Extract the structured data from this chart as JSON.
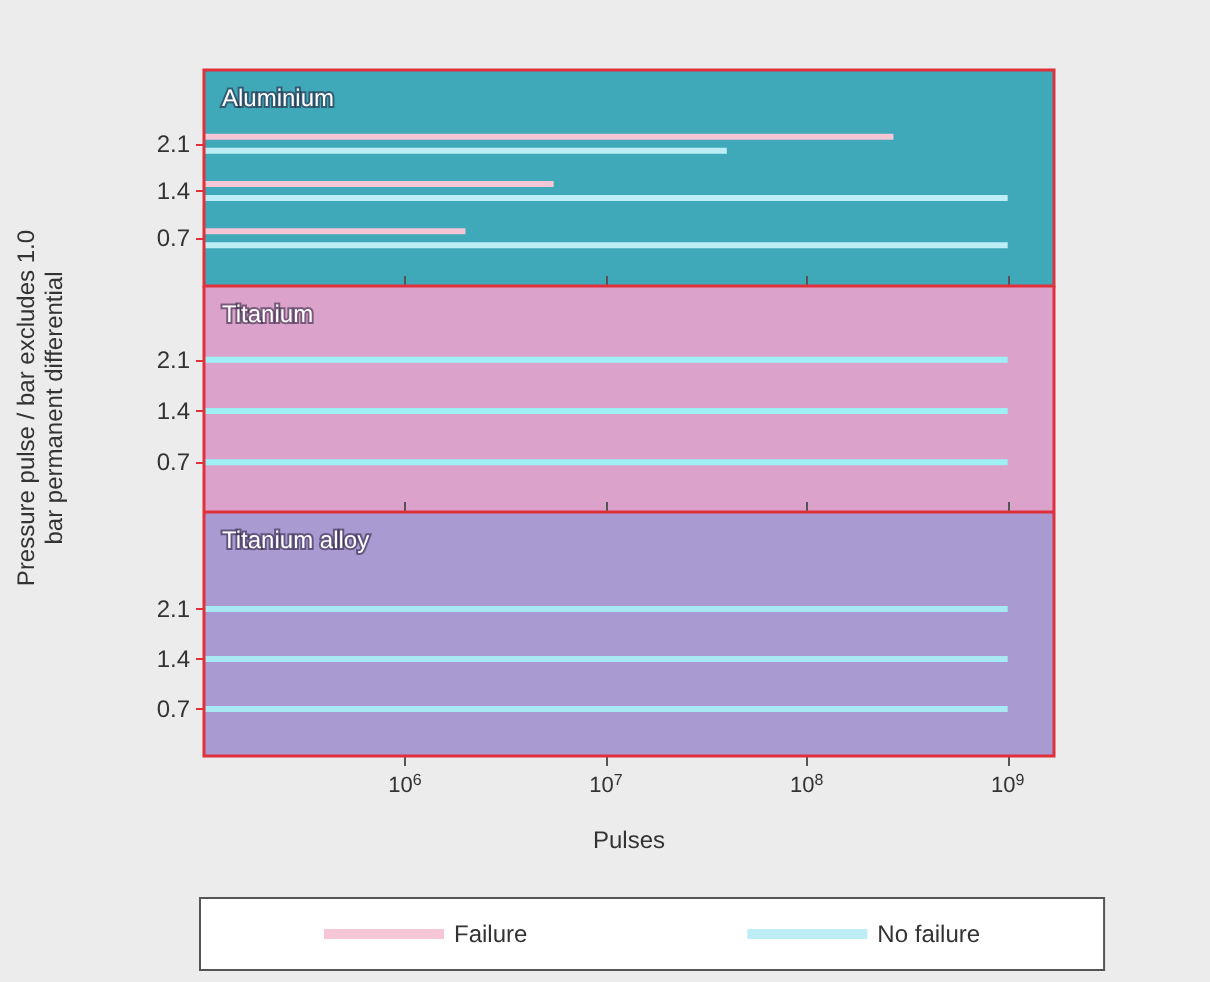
{
  "chart_data": [
    {
      "type": "bar",
      "orientation": "horizontal",
      "title": "Aluminium",
      "categories": [
        "2.1",
        "1.4",
        "0.7"
      ],
      "series": [
        {
          "name": "Failure",
          "color": "#f4c6d6",
          "values": [
            270000000,
            5500000,
            2000000
          ]
        },
        {
          "name": "No failure",
          "color": "#bdeef6",
          "values": [
            40000000,
            1000000000,
            1000000000
          ]
        }
      ],
      "log": "x",
      "xlim": [
        100000,
        1700000000
      ],
      "xticks": [
        {
          "value": 1000000,
          "label": null
        },
        {
          "value": 10000000,
          "label": null
        },
        {
          "value": 100000000,
          "label": null
        },
        {
          "value": 1000000000,
          "label": null
        }
      ],
      "tick_labels": "y",
      "legend": "bottom",
      "grid": false,
      "bands": [
        {
          "axis": "x",
          "from": 100000,
          "to": 1700000000,
          "color": "#3fa9b9"
        }
      ]
    },
    {
      "type": "bar",
      "orientation": "horizontal",
      "title": "Titanium",
      "ylabel": "Pressure pulse / bar excludes 1.0 bar permanent differential",
      "categories": [
        "2.1",
        "1.4",
        "0.7"
      ],
      "series": [
        {
          "color": "#9ef0f4",
          "values": [
            1000000000,
            1000000000,
            1000000000
          ]
        }
      ],
      "log": "x",
      "xlim": [
        100000,
        1700000000
      ],
      "xticks": [
        {
          "value": 1000000,
          "label": null
        },
        {
          "value": 10000000,
          "label": null
        },
        {
          "value": 100000000,
          "label": null
        },
        {
          "value": 1000000000,
          "label": null
        }
      ],
      "tick_labels": "y",
      "legend": false,
      "grid": false,
      "bands": [
        {
          "axis": "x",
          "from": 100000,
          "to": 1700000000,
          "color": "#dba3cb"
        }
      ]
    },
    {
      "type": "bar",
      "orientation": "horizontal",
      "title": "Titanium alloy",
      "xlabel": "Pulses",
      "categories": [
        "2.1",
        "1.4",
        "0.7"
      ],
      "series": [
        {
          "color": "#a8e8f4",
          "values": [
            1000000000,
            1000000000,
            1000000000
          ]
        }
      ],
      "log": "x",
      "xlim": [
        100000,
        1700000000
      ],
      "xticks": [
        {
          "value": 1000000,
          "label": "10$^{6}$"
        },
        {
          "value": 10000000,
          "label": "10$^{7}$"
        },
        {
          "value": 100000000,
          "label": "10$^{8}$"
        },
        {
          "value": 1000000000,
          "label": "10$^{9}$"
        }
      ],
      "legend": false,
      "grid": false,
      "bands": [
        {
          "axis": "x",
          "from": 100000,
          "to": 1700000000,
          "color": "#a99bd2"
        }
      ]
    }
  ]
}
